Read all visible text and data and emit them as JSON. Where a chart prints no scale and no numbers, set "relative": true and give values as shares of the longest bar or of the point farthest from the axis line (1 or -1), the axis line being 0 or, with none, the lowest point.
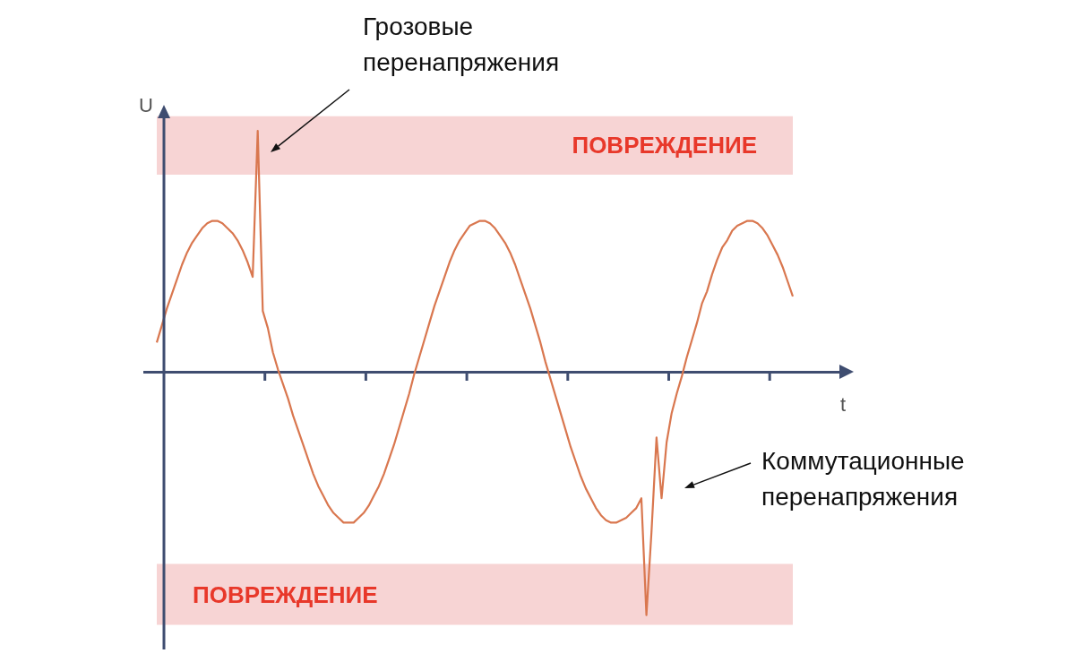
{
  "chart_data": {
    "type": "line",
    "relative": true,
    "xlabel": "t",
    "ylabel": "U",
    "categories": [
      null,
      null,
      null,
      null,
      null,
      null,
      null,
      null,
      null,
      null,
      null,
      null,
      null,
      null,
      null,
      null,
      null,
      null,
      null,
      null,
      null,
      null,
      null,
      null,
      null,
      null,
      null,
      null,
      null,
      null,
      null,
      null,
      null,
      null,
      null,
      null,
      null,
      null,
      null,
      null,
      null,
      null,
      null,
      null,
      null,
      null,
      null,
      null,
      null,
      null,
      null,
      null,
      null,
      null,
      null,
      null,
      null,
      null,
      null,
      null,
      null,
      null,
      null,
      null,
      null,
      null,
      null,
      null,
      null,
      null,
      null,
      null,
      null,
      null,
      null,
      null,
      null,
      null,
      null,
      null,
      null,
      null,
      null,
      null,
      null,
      null,
      null,
      null,
      null,
      null,
      null,
      null,
      null,
      null,
      null,
      null,
      null,
      null,
      null,
      null,
      null,
      null,
      null,
      null,
      null,
      null,
      null,
      null,
      null,
      null,
      null,
      null,
      null,
      null,
      null,
      null,
      null,
      null,
      null,
      null,
      null,
      null,
      null,
      null,
      null,
      null,
      null
    ],
    "grid": false,
    "marker": "none",
    "line_style": "solid",
    "series": [
      {
        "color": "#d9774f",
        "values": [
          0.12,
          0.19,
          0.26,
          0.32,
          0.38,
          0.44,
          0.49,
          0.53,
          0.56,
          0.59,
          0.61,
          0.62,
          0.62,
          0.61,
          0.59,
          0.57,
          0.54,
          0.5,
          0.45,
          0.39,
          0.99,
          0.25,
          0.18,
          0.08,
          0.01,
          -0.05,
          -0.11,
          -0.18,
          -0.24,
          -0.3,
          -0.36,
          -0.42,
          -0.47,
          -0.51,
          -0.55,
          -0.58,
          -0.6,
          -0.62,
          -0.62,
          -0.62,
          -0.6,
          -0.58,
          -0.55,
          -0.51,
          -0.47,
          -0.42,
          -0.36,
          -0.3,
          -0.23,
          -0.16,
          -0.09,
          -0.01,
          0.06,
          0.13,
          0.2,
          0.27,
          0.33,
          0.39,
          0.45,
          0.5,
          0.54,
          0.57,
          0.6,
          0.61,
          0.62,
          0.62,
          0.61,
          0.59,
          0.56,
          0.53,
          0.49,
          0.44,
          0.38,
          0.32,
          0.26,
          0.19,
          0.12,
          0.04,
          -0.03,
          -0.1,
          -0.17,
          -0.24,
          -0.31,
          -0.37,
          -0.43,
          -0.48,
          -0.52,
          -0.56,
          -0.59,
          -0.61,
          -0.62,
          -0.62,
          -0.61,
          -0.6,
          -0.58,
          -0.56,
          -0.52,
          -1,
          -0.66,
          -0.27,
          -0.52,
          -0.29,
          -0.17,
          -0.09,
          -0.02,
          0.06,
          0.13,
          0.2,
          0.28,
          0.33,
          0.4,
          0.46,
          0.51,
          0.54,
          0.58,
          0.6,
          0.61,
          0.62,
          0.62,
          0.61,
          0.59,
          0.56,
          0.52,
          0.48,
          0.43,
          0.37,
          0.31
        ]
      }
    ],
    "ref_lines": [
      {
        "axis": "y",
        "value": 0,
        "color": "#3f4d70"
      }
    ],
    "bands": [
      {
        "axis": "y",
        "from": 0.81,
        "to": 1.05,
        "label": "ПОВРЕЖДЕНИЕ",
        "color": "#f4c2c2"
      },
      {
        "axis": "y",
        "from": -1.04,
        "to": -0.79,
        "label": "ПОВРЕЖДЕНИЕ",
        "color": "#f4c2c2"
      }
    ],
    "annotations": [
      "Грозовые перенапряжения",
      "Коммутационные перенапряжения"
    ]
  }
}
